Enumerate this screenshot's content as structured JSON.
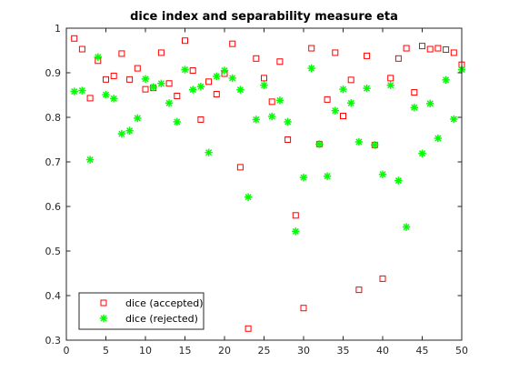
{
  "chart_data": {
    "type": "scatter",
    "title": "dice index and separability measure eta",
    "xlabel": "",
    "ylabel": "",
    "xlim": [
      0,
      50
    ],
    "ylim": [
      0.3,
      1
    ],
    "xticks": [
      0,
      5,
      10,
      15,
      20,
      25,
      30,
      35,
      40,
      45,
      50
    ],
    "yticks": [
      0.3,
      0.4,
      0.5,
      0.6,
      0.7,
      0.8,
      0.9,
      1
    ],
    "grid": false,
    "legend_position": "bottom-left",
    "x": [
      1,
      2,
      3,
      4,
      5,
      6,
      7,
      8,
      9,
      10,
      11,
      12,
      13,
      14,
      15,
      16,
      17,
      18,
      19,
      20,
      21,
      22,
      23,
      24,
      25,
      26,
      27,
      28,
      29,
      30,
      31,
      32,
      33,
      34,
      35,
      36,
      37,
      38,
      39,
      40,
      41,
      42,
      43,
      44,
      45,
      46,
      47,
      48,
      49,
      50
    ],
    "series": [
      {
        "name": "dice (accepted)",
        "marker": "square",
        "color": "#ff0000",
        "values": [
          0.977,
          0.953,
          0.843,
          0.927,
          0.885,
          0.893,
          0.943,
          0.885,
          0.91,
          0.863,
          0.866,
          0.945,
          0.876,
          0.848,
          0.972,
          0.905,
          0.795,
          0.88,
          0.852,
          0.898,
          0.965,
          0.688,
          0.326,
          0.932,
          0.888,
          0.835,
          0.925,
          0.75,
          0.58,
          0.372,
          0.955,
          0.74,
          0.84,
          0.945,
          0.803,
          0.884,
          0.413,
          0.938,
          0.738,
          0.438,
          0.888,
          0.932,
          0.955,
          0.856,
          0.96,
          0.953,
          0.955,
          0.952,
          0.945,
          0.918
        ]
      },
      {
        "name": "dice (rejected)",
        "marker": "asterisk",
        "color": "#00ff00",
        "values": [
          0.858,
          0.86,
          0.705,
          0.935,
          0.851,
          0.842,
          0.763,
          0.77,
          0.798,
          0.886,
          0.868,
          0.876,
          0.832,
          0.79,
          0.907,
          0.862,
          0.869,
          0.721,
          0.892,
          0.905,
          0.888,
          0.862,
          0.621,
          0.795,
          0.872,
          0.802,
          0.838,
          0.79,
          0.544,
          0.665,
          0.91,
          0.74,
          0.668,
          0.815,
          0.863,
          0.832,
          0.745,
          0.865,
          0.738,
          0.672,
          0.872,
          0.658,
          0.554,
          0.822,
          0.719,
          0.831,
          0.753,
          0.884,
          0.796,
          0.907
        ]
      }
    ]
  }
}
